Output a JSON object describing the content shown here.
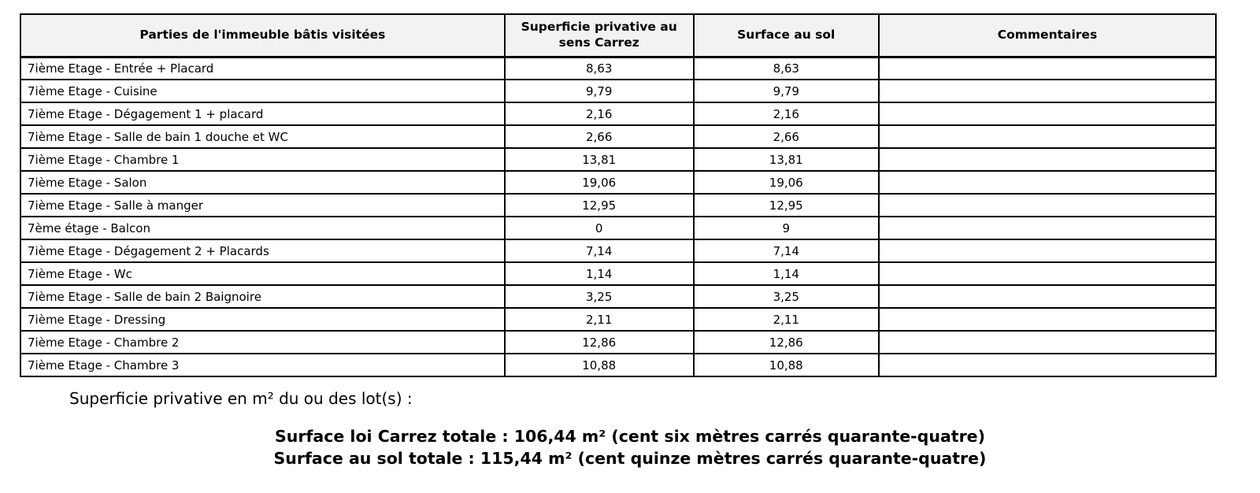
{
  "table": {
    "headers": [
      "Parties de l'immeuble bâtis visitées",
      "Superficie privative au sens Carrez",
      "Surface au sol",
      "Commentaires"
    ],
    "rows": [
      {
        "part": "7ième Etage - Entrée + Placard",
        "carrez": "8,63",
        "floor": "8,63",
        "comment": ""
      },
      {
        "part": "7ième Etage - Cuisine",
        "carrez": "9,79",
        "floor": "9,79",
        "comment": ""
      },
      {
        "part": "7ième Etage - Dégagement 1 + placard",
        "carrez": "2,16",
        "floor": "2,16",
        "comment": ""
      },
      {
        "part": "7ième Etage - Salle de bain 1 douche et WC",
        "carrez": "2,66",
        "floor": "2,66",
        "comment": ""
      },
      {
        "part": "7ième Etage - Chambre 1",
        "carrez": "13,81",
        "floor": "13,81",
        "comment": ""
      },
      {
        "part": "7ième Etage - Salon",
        "carrez": "19,06",
        "floor": "19,06",
        "comment": ""
      },
      {
        "part": "7ième Etage - Salle à manger",
        "carrez": "12,95",
        "floor": "12,95",
        "comment": ""
      },
      {
        "part": "7ème étage - Balcon",
        "carrez": "0",
        "floor": "9",
        "comment": ""
      },
      {
        "part": "7ième Etage - Dégagement 2 + Placards",
        "carrez": "7,14",
        "floor": "7,14",
        "comment": ""
      },
      {
        "part": "7ième Etage - Wc",
        "carrez": "1,14",
        "floor": "1,14",
        "comment": ""
      },
      {
        "part": "7ième Etage - Salle de bain 2 Baignoire",
        "carrez": "3,25",
        "floor": "3,25",
        "comment": ""
      },
      {
        "part": "7ième Etage - Dressing",
        "carrez": "2,11",
        "floor": "2,11",
        "comment": ""
      },
      {
        "part": "7ième Etage - Chambre 2",
        "carrez": "12,86",
        "floor": "12,86",
        "comment": ""
      },
      {
        "part": "7ième Etage - Chambre 3",
        "carrez": "10,88",
        "floor": "10,88",
        "comment": ""
      }
    ]
  },
  "footer": {
    "intro": "Superficie privative en m² du ou des lot(s) :",
    "carrez_total": "Surface loi Carrez totale : 106,44 m² (cent six mètres carrés quarante-quatre)",
    "floor_total": "Surface au sol totale : 115,44 m² (cent quinze mètres carrés quarante-quatre)"
  },
  "colors": {
    "border": "#000000",
    "header_bg": "#f2f2f2",
    "text": "#000000"
  }
}
